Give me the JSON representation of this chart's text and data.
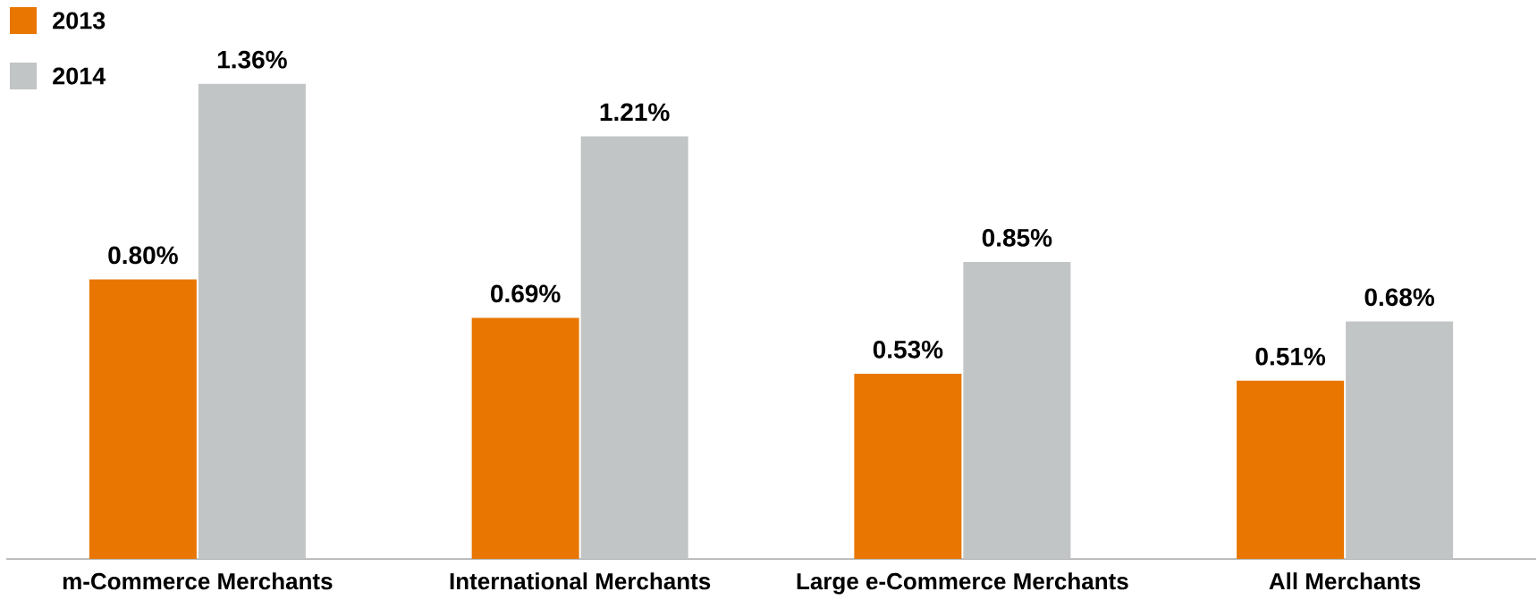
{
  "chart_data": {
    "type": "bar",
    "categories": [
      "m-Commerce Merchants",
      "International Merchants",
      "Large e-Commerce Merchants",
      "All Merchants"
    ],
    "series": [
      {
        "name": "2013",
        "color": "#e87600",
        "values": [
          0.8,
          0.69,
          0.53,
          0.51
        ],
        "value_labels": [
          "0.80%",
          "0.69%",
          "0.53%",
          "0.51%"
        ]
      },
      {
        "name": "2014",
        "color": "#c2c5c5",
        "values": [
          1.36,
          1.21,
          0.85,
          0.68
        ],
        "value_labels": [
          "1.36%",
          "1.21%",
          "0.85%",
          "0.68%"
        ]
      }
    ],
    "legend": "top left"
  }
}
